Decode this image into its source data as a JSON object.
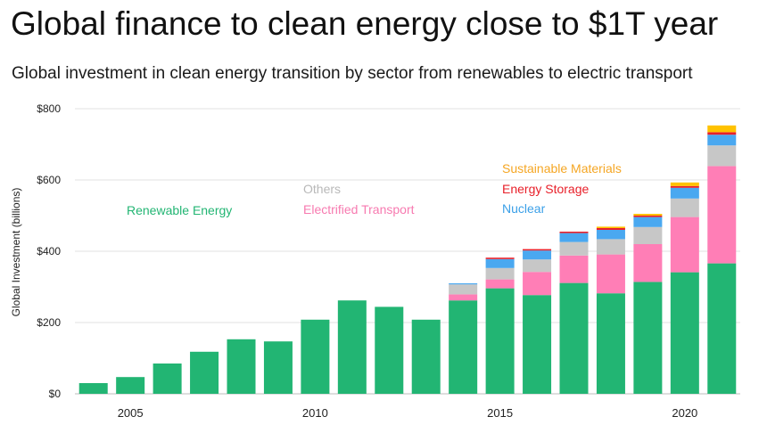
{
  "header": {
    "title": "Global finance to clean energy close to $1T year",
    "subtitle": "Global investment in clean energy transition by sector from renewables to electric transport"
  },
  "chart_data": {
    "type": "bar",
    "stacked": true,
    "title": "Global finance to clean energy close to $1T year",
    "subtitle": "Global investment in clean energy transition by sector from renewables to electric transport",
    "xlabel": "",
    "ylabel": "Global Investment (billions)",
    "ylim": [
      0,
      800
    ],
    "yticks": [
      0,
      200,
      400,
      600,
      800
    ],
    "ytick_labels": [
      "$0",
      "$200",
      "$400",
      "$600",
      "$800"
    ],
    "categories": [
      "2004",
      "2005",
      "2006",
      "2007",
      "2008",
      "2009",
      "2010",
      "2011",
      "2012",
      "2013",
      "2014",
      "2015",
      "2016",
      "2017",
      "2018",
      "2019",
      "2020",
      "2021"
    ],
    "xtick_labels": [
      {
        "category": "2005",
        "label": "2005"
      },
      {
        "category": "2010",
        "label": "2010"
      },
      {
        "category": "2015",
        "label": "2015"
      },
      {
        "category": "2020",
        "label": "2020"
      }
    ],
    "grid": true,
    "series": [
      {
        "name": "Renewable Energy",
        "color": "#22b573",
        "values": [
          30,
          47,
          85,
          118,
          153,
          147,
          208,
          262,
          244,
          208,
          262,
          296,
          277,
          311,
          282,
          314,
          341,
          366
        ]
      },
      {
        "name": "Electrified Transport",
        "color": "#ff7eb6",
        "values": [
          0,
          0,
          0,
          0,
          0,
          0,
          0,
          0,
          0,
          0,
          17,
          25,
          65,
          77,
          109,
          106,
          155,
          273
        ]
      },
      {
        "name": "Others",
        "color": "#c7c7c7",
        "values": [
          0,
          0,
          0,
          0,
          0,
          0,
          0,
          0,
          0,
          0,
          28,
          32,
          35,
          38,
          43,
          48,
          52,
          58
        ]
      },
      {
        "name": "Nuclear",
        "color": "#4aa8f0",
        "values": [
          0,
          0,
          0,
          0,
          0,
          0,
          0,
          0,
          0,
          0,
          3,
          25,
          25,
          25,
          26,
          28,
          30,
          30
        ]
      },
      {
        "name": "Energy Storage",
        "color": "#e8202a",
        "values": [
          0,
          0,
          0,
          0,
          0,
          0,
          0,
          0,
          0,
          0,
          0,
          4,
          4,
          4,
          5,
          4,
          5,
          7
        ]
      },
      {
        "name": "Sustainable Materials",
        "color": "#ffc200",
        "values": [
          0,
          0,
          0,
          0,
          0,
          0,
          0,
          0,
          0,
          0,
          0,
          0,
          0,
          0,
          4,
          5,
          10,
          19
        ]
      }
    ],
    "annotations": [
      {
        "text": "Renewable Energy",
        "color": "#22b573"
      },
      {
        "text": "Others",
        "color": "#b8b8b8"
      },
      {
        "text": "Electrified Transport",
        "color": "#f77ab0"
      },
      {
        "text": "Sustainable Materials",
        "color": "#f5a623"
      },
      {
        "text": "Energy Storage",
        "color": "#e8202a"
      },
      {
        "text": "Nuclear",
        "color": "#3ba0e8"
      }
    ]
  }
}
